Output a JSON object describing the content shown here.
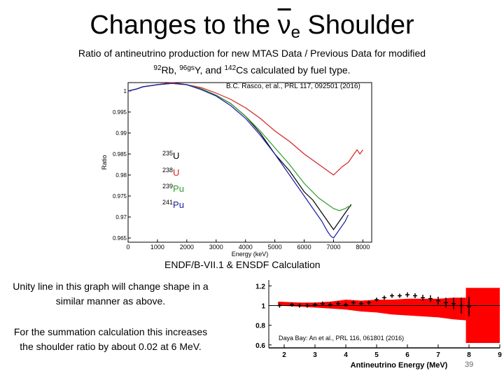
{
  "slide": {
    "title_prefix": "Changes to the ",
    "title_nu": "ν",
    "title_sub": "e",
    "title_suffix": " Shoulder",
    "subtitle_line1": "Ratio of antineutrino production for new MTAS Data / Previous Data for modified",
    "sub_iso1_mass": "92",
    "sub_iso1": "Rb, ",
    "sub_iso2_mass": "96gs",
    "sub_iso2": "Y, and ",
    "sub_iso3_mass": "142",
    "sub_iso3": "Cs calculated by fuel type.",
    "citation_top": "B.C. Rasco, et al., PRL 117, 092501 (2016)",
    "endf_label": "ENDF/B-VII.1 & ENSDF Calculation",
    "note_1": "Unity line in this graph will change shape in a similar manner as above.",
    "note_2": "For the summation calculation this increases the shoulder ratio by about 0.02 at 6 MeV.",
    "page_number": "39"
  },
  "legend": [
    {
      "mass": "235",
      "symbol": "U",
      "color": "#000000"
    },
    {
      "mass": "238",
      "symbol": "U",
      "color": "#d62020"
    },
    {
      "mass": "239",
      "symbol": "Pu",
      "color": "#2e9d2e"
    },
    {
      "mass": "241",
      "symbol": "Pu",
      "color": "#1a1aa8"
    }
  ],
  "chart_data": [
    {
      "type": "line",
      "xlabel": "Energy (keV)",
      "ylabel": "Ratio",
      "xlim": [
        0,
        8300
      ],
      "ylim": [
        0.964,
        1.002
      ],
      "xticks": [
        0,
        1000,
        2000,
        3000,
        4000,
        5000,
        6000,
        7000,
        8000
      ],
      "yticks": [
        0.965,
        0.97,
        0.975,
        0.98,
        0.985,
        0.99,
        0.995,
        1
      ],
      "ytick_labels": [
        "0.965",
        "0.97",
        "0.975",
        "0.98",
        "0.985",
        "0.99",
        "0.995",
        "1"
      ],
      "grid": false,
      "series": [
        {
          "name": "235U",
          "color": "#000000",
          "x": [
            0,
            300,
            500,
            1000,
            1500,
            2000,
            2500,
            3000,
            3500,
            4000,
            4500,
            5000,
            5500,
            6000,
            6300,
            6600,
            6800,
            6900,
            7000,
            7200,
            7400,
            7500,
            7600
          ],
          "y": [
            1.0,
            1.0005,
            1.001,
            1.0015,
            1.002,
            1.0015,
            1.0005,
            0.999,
            0.997,
            0.994,
            0.99,
            0.985,
            0.981,
            0.976,
            0.974,
            0.971,
            0.969,
            0.968,
            0.967,
            0.969,
            0.971,
            0.972,
            0.973
          ]
        },
        {
          "name": "238U",
          "color": "#d62020",
          "x": [
            0,
            300,
            500,
            1000,
            1500,
            2000,
            2500,
            3000,
            3500,
            4000,
            4500,
            5000,
            5500,
            6000,
            6500,
            6800,
            7000,
            7300,
            7500,
            7700,
            7800,
            7900,
            8000
          ],
          "y": [
            1.0,
            1.0005,
            1.001,
            1.0015,
            1.002,
            1.0015,
            1.0008,
            0.9995,
            0.998,
            0.996,
            0.9935,
            0.9905,
            0.988,
            0.985,
            0.9825,
            0.981,
            0.98,
            0.982,
            0.983,
            0.985,
            0.986,
            0.985,
            0.986
          ]
        },
        {
          "name": "239Pu",
          "color": "#2e9d2e",
          "x": [
            0,
            300,
            500,
            1000,
            1500,
            2000,
            2500,
            3000,
            3500,
            4000,
            4500,
            5000,
            5500,
            6000,
            6500,
            6800,
            7000,
            7200,
            7400,
            7500,
            7600
          ],
          "y": [
            1.0,
            1.0005,
            1.001,
            1.0015,
            1.0018,
            1.0015,
            1.0005,
            0.999,
            0.997,
            0.994,
            0.9905,
            0.9865,
            0.9825,
            0.978,
            0.9745,
            0.973,
            0.972,
            0.9715,
            0.972,
            0.9725,
            0.9725
          ]
        },
        {
          "name": "241Pu",
          "color": "#1a1aa8",
          "x": [
            0,
            300,
            500,
            1000,
            1500,
            2000,
            2500,
            3000,
            3500,
            4000,
            4500,
            5000,
            5500,
            6000,
            6300,
            6600,
            6800,
            6900,
            7000,
            7200,
            7400,
            7500
          ],
          "y": [
            1.0,
            1.0005,
            1.001,
            1.0015,
            1.0018,
            1.0015,
            1.0003,
            0.9988,
            0.9965,
            0.9935,
            0.9895,
            0.985,
            0.98,
            0.975,
            0.972,
            0.969,
            0.9665,
            0.9655,
            0.965,
            0.967,
            0.969,
            0.9705
          ]
        }
      ]
    },
    {
      "type": "scatter",
      "xlabel": "Antineutrino Energy (MeV)",
      "ylabel": "",
      "xlim": [
        1.5,
        9.0
      ],
      "ylim": [
        0.57,
        1.26
      ],
      "xticks": [
        2,
        3,
        4,
        5,
        6,
        7,
        8,
        9
      ],
      "xtick_labels": [
        "2",
        "3",
        "4",
        "5",
        "6",
        "7",
        "8",
        "9"
      ],
      "yticks": [
        0.6,
        0.8,
        1.0,
        1.2
      ],
      "ytick_labels": [
        "0.6",
        "0.8",
        "1",
        "1.2"
      ],
      "grid": false,
      "annotation": "Daya Bay: An et al., PRL 116, 061801 (2016)",
      "band": {
        "color": "#ff0000",
        "x": [
          1.8,
          2.5,
          3.0,
          3.5,
          4.0,
          4.5,
          5.0,
          5.5,
          6.0,
          6.5,
          7.0,
          7.5,
          7.9
        ],
        "lo": [
          1.0,
          0.99,
          0.98,
          0.97,
          0.96,
          0.94,
          0.93,
          0.91,
          0.9,
          0.89,
          0.88,
          0.86,
          0.85
        ],
        "hi": [
          1.04,
          1.03,
          1.03,
          1.04,
          1.06,
          1.05,
          1.06,
          1.06,
          1.07,
          1.07,
          1.07,
          1.08,
          1.08
        ]
      },
      "box": {
        "x0": 7.9,
        "x1": 9.0,
        "lo": 0.62,
        "hi": 1.18,
        "color": "#ff0000"
      },
      "points": {
        "x": [
          1.85,
          2.25,
          2.5,
          2.75,
          3.0,
          3.25,
          3.5,
          3.75,
          4.0,
          4.25,
          4.5,
          4.75,
          5.0,
          5.25,
          5.5,
          5.75,
          6.0,
          6.25,
          6.5,
          6.75,
          7.0,
          7.25,
          7.5,
          7.75,
          8.0
        ],
        "y": [
          1.0,
          1.01,
          1.0,
          1.0,
          1.01,
          1.02,
          1.01,
          1.02,
          1.01,
          1.03,
          1.02,
          1.03,
          1.06,
          1.08,
          1.1,
          1.1,
          1.11,
          1.1,
          1.08,
          1.07,
          1.05,
          1.03,
          1.02,
          1.0,
          0.99
        ],
        "err": [
          0.005,
          0.005,
          0.005,
          0.005,
          0.005,
          0.005,
          0.008,
          0.008,
          0.01,
          0.01,
          0.012,
          0.012,
          0.015,
          0.015,
          0.02,
          0.02,
          0.025,
          0.025,
          0.03,
          0.035,
          0.04,
          0.05,
          0.06,
          0.08,
          0.1
        ]
      }
    }
  ]
}
